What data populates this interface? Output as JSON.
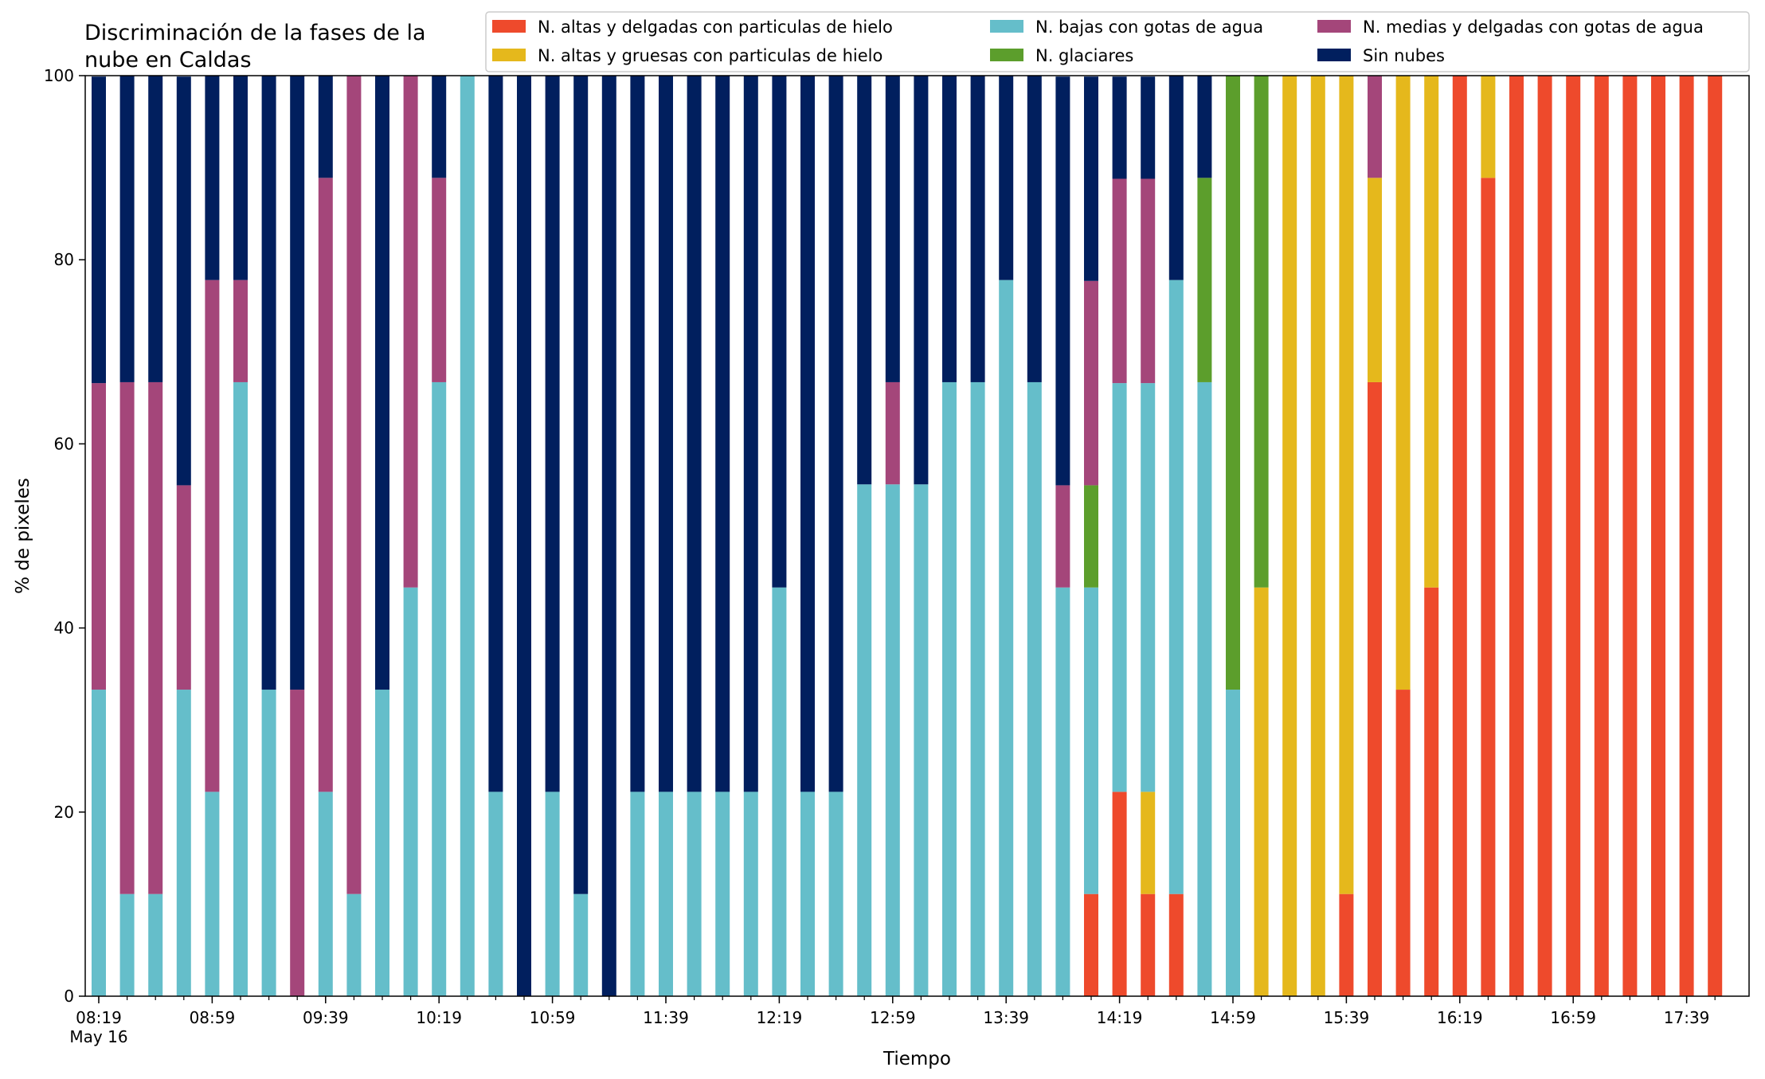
{
  "chart_data": {
    "type": "bar",
    "stacked": true,
    "title_lines": [
      "Discriminación de la fases de la",
      "nube en Caldas"
    ],
    "xlabel": "Tiempo",
    "ylabel": "% de pixeles",
    "ylim": [
      0,
      100
    ],
    "yticks": [
      "0",
      "20",
      "40",
      "60",
      "80",
      "100"
    ],
    "grid": false,
    "legend_position": "top-right",
    "date_label": "May 16",
    "xtick_labels": [
      "08:19",
      "08:59",
      "09:39",
      "10:19",
      "10:59",
      "11:39",
      "12:19",
      "12:59",
      "13:39",
      "14:19",
      "14:59",
      "15:39",
      "16:19",
      "16:59",
      "17:39"
    ],
    "categories": [
      "08:19",
      "08:29",
      "08:39",
      "08:49",
      "08:59",
      "09:09",
      "09:19",
      "09:29",
      "09:39",
      "09:49",
      "09:59",
      "10:09",
      "10:19",
      "10:29",
      "10:39",
      "10:49",
      "10:59",
      "11:09",
      "11:19",
      "11:29",
      "11:39",
      "11:49",
      "11:59",
      "12:09",
      "12:19",
      "12:29",
      "12:39",
      "12:49",
      "12:59",
      "13:09",
      "13:19",
      "13:29",
      "13:39",
      "13:49",
      "13:59",
      "14:09",
      "14:19",
      "14:29",
      "14:39",
      "14:49",
      "14:59",
      "15:09",
      "15:19",
      "15:29",
      "15:39",
      "15:49",
      "15:59",
      "16:09",
      "16:19",
      "16:29",
      "16:39",
      "16:49",
      "16:59",
      "17:09",
      "17:19",
      "17:29",
      "17:39",
      "17:49"
    ],
    "series": [
      {
        "name": "N. altas y delgadas con particulas de hielo",
        "color": "#EE4A2C",
        "values": [
          0,
          0,
          0,
          0,
          0,
          0,
          0,
          0,
          0,
          0,
          0,
          0,
          0,
          0,
          0,
          0,
          0,
          0,
          0,
          0,
          0,
          0,
          0,
          0,
          0,
          0,
          0,
          0,
          0,
          0,
          0,
          0,
          0,
          0,
          0,
          11.1,
          22.2,
          11.1,
          11.1,
          0,
          0,
          0,
          0,
          0,
          11.1,
          66.7,
          33.3,
          44.4,
          100,
          88.9,
          100,
          100,
          100,
          100,
          100,
          100,
          100,
          100
        ]
      },
      {
        "name": "N. altas y gruesas con particulas de hielo",
        "color": "#E5B81C",
        "values": [
          0,
          0,
          0,
          0,
          0,
          0,
          0,
          0,
          0,
          0,
          0,
          0,
          0,
          0,
          0,
          0,
          0,
          0,
          0,
          0,
          0,
          0,
          0,
          0,
          0,
          0,
          0,
          0,
          0,
          0,
          0,
          0,
          0,
          0,
          0,
          0,
          0,
          11.1,
          0,
          0,
          0,
          44.4,
          100,
          100,
          88.9,
          22.2,
          66.7,
          55.6,
          0,
          11.1,
          0,
          0,
          0,
          0,
          0,
          0,
          0,
          0
        ]
      },
      {
        "name": "N. bajas con gotas de agua",
        "color": "#65BECA",
        "values": [
          33.3,
          11.1,
          11.1,
          33.3,
          22.2,
          66.7,
          33.3,
          0,
          22.2,
          11.1,
          33.3,
          44.4,
          66.7,
          100,
          22.2,
          0,
          22.2,
          11.1,
          0,
          22.2,
          22.2,
          22.2,
          22.2,
          22.2,
          44.4,
          22.2,
          22.2,
          55.6,
          55.6,
          55.6,
          66.7,
          66.7,
          77.8,
          66.7,
          44.4,
          33.3,
          44.4,
          44.4,
          66.7,
          66.7,
          33.3,
          0,
          0,
          0,
          0,
          0,
          0,
          0,
          0,
          0,
          0,
          0,
          0,
          0,
          0,
          0,
          0,
          0
        ]
      },
      {
        "name": "N. glaciares",
        "color": "#5C9E2C",
        "values": [
          0,
          0,
          0,
          0,
          0,
          0,
          0,
          0,
          0,
          0,
          0,
          0,
          0,
          0,
          0,
          0,
          0,
          0,
          0,
          0,
          0,
          0,
          0,
          0,
          0,
          0,
          0,
          0,
          0,
          0,
          0,
          0,
          0,
          0,
          0,
          11.1,
          0,
          0,
          0,
          22.2,
          66.7,
          55.6,
          0,
          0,
          0,
          0,
          0,
          0,
          0,
          0,
          0,
          0,
          0,
          0,
          0,
          0,
          0,
          0
        ]
      },
      {
        "name": "N. medias y delgadas con gotas de agua",
        "color": "#A4467A",
        "values": [
          33.3,
          55.6,
          55.6,
          22.2,
          55.6,
          11.1,
          0,
          33.3,
          66.7,
          88.9,
          0,
          55.6,
          22.2,
          0,
          0,
          0,
          0,
          0,
          0,
          0,
          0,
          0,
          0,
          0,
          0,
          0,
          0,
          0,
          11.1,
          0,
          0,
          0,
          0,
          0,
          11.1,
          22.2,
          22.2,
          22.2,
          0,
          0,
          0,
          0,
          0,
          0,
          0,
          11.1,
          0,
          0,
          0,
          0,
          0,
          0,
          0,
          0,
          0,
          0,
          0,
          0
        ]
      },
      {
        "name": "Sin nubes",
        "color": "#011F5E",
        "values": [
          33.3,
          33.3,
          33.3,
          44.4,
          22.2,
          22.2,
          66.7,
          66.7,
          11.1,
          0,
          66.7,
          0,
          11.1,
          0,
          77.8,
          100,
          77.8,
          88.9,
          100,
          77.8,
          77.8,
          77.8,
          77.8,
          77.8,
          55.6,
          77.8,
          77.8,
          44.4,
          33.3,
          44.4,
          33.3,
          33.3,
          22.2,
          33.3,
          44.4,
          22.2,
          11.1,
          11.1,
          22.2,
          11.1,
          0,
          0,
          0,
          0,
          0,
          0,
          0,
          0,
          0,
          0,
          0,
          0,
          0,
          0,
          0,
          0,
          0,
          0
        ]
      }
    ]
  }
}
